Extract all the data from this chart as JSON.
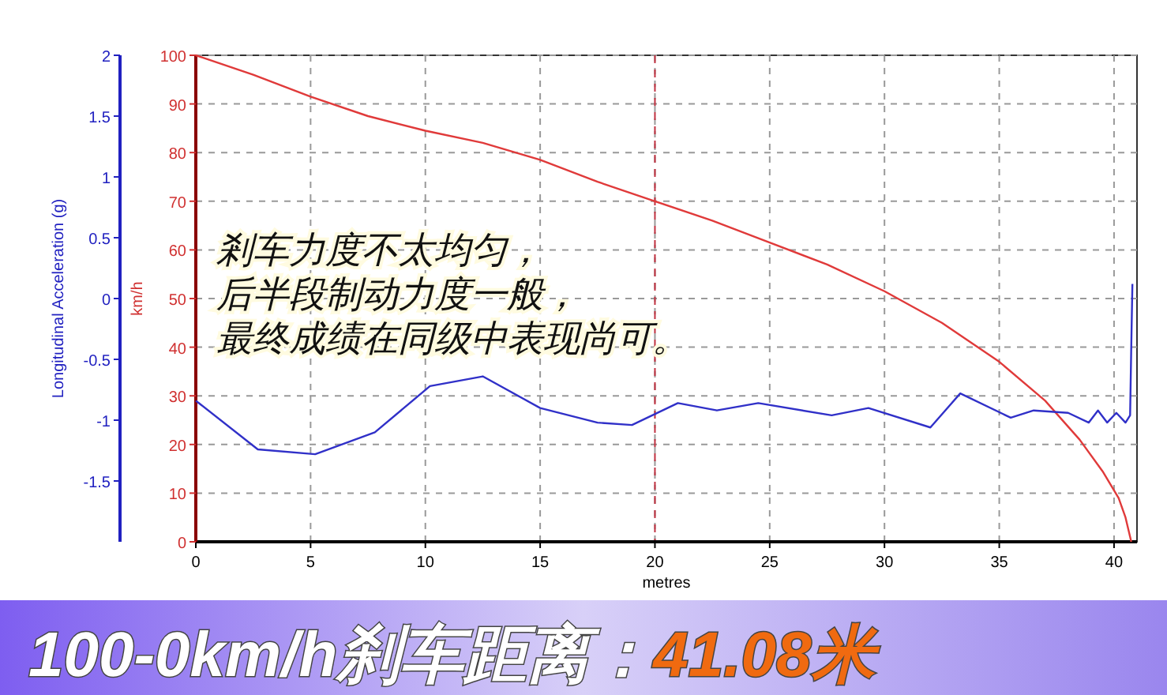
{
  "chart_data": {
    "type": "line",
    "title": "100-0km/h刹车距离：",
    "subtitle": "41.08米",
    "xlabel": "metres",
    "ylabel": "Longitudinal Acceleration (g)",
    "y2label": "km/h",
    "xlim": [
      0,
      41
    ],
    "xticks": [
      0,
      5,
      10,
      15,
      20,
      25,
      30,
      35,
      40
    ],
    "ylim": [
      -2,
      2
    ],
    "yticks": [
      2,
      1.5,
      1,
      0.5,
      0,
      -0.5,
      -1,
      -1.5
    ],
    "y2lim": [
      0,
      100
    ],
    "y2ticks": [
      0,
      10,
      20,
      30,
      40,
      50,
      60,
      70,
      80,
      90,
      100
    ],
    "grid": true,
    "line_style": "solid",
    "marker": "none",
    "ref_lines": [
      {
        "axis": "x",
        "value": 20,
        "color": "#c03040",
        "line_style": "dashed"
      }
    ],
    "annotations": [
      "剎车力度不太均匀，",
      "后半段制动力度一般，",
      "最终成绩在同级中表现尚可。"
    ],
    "series": [
      {
        "color": "#e03a3a",
        "axis": "y2",
        "x": [
          0,
          2.5,
          5,
          7.5,
          10,
          12.5,
          15,
          17.5,
          20,
          22.5,
          25,
          27.5,
          30,
          32.5,
          35,
          37,
          38.5,
          39.5,
          40.2,
          40.5,
          40.7,
          40.75
        ],
        "values": [
          100,
          96,
          91.5,
          87.5,
          84.5,
          82,
          78.5,
          74,
          70,
          66,
          61.5,
          57,
          51.5,
          45,
          37,
          29,
          21,
          14.5,
          9,
          5,
          1,
          0
        ]
      },
      {
        "color": "#3030c8",
        "axis": "y",
        "x": [
          0,
          2.7,
          5.2,
          7.8,
          10.2,
          12.5,
          15,
          17.5,
          19,
          21,
          22.7,
          24.5,
          27.7,
          29.3,
          32,
          33.3,
          35.5,
          36.5,
          38,
          38.9,
          39.3,
          39.7,
          40.1,
          40.5,
          40.7,
          40.75,
          40.8
        ],
        "values": [
          -0.84,
          -1.24,
          -1.28,
          -1.1,
          -0.72,
          -0.64,
          -0.9,
          -1.02,
          -1.04,
          -0.86,
          -0.92,
          -0.86,
          -0.96,
          -0.9,
          -1.06,
          -0.78,
          -0.98,
          -0.92,
          -0.94,
          -1.02,
          -0.92,
          -1.02,
          -0.94,
          -1.02,
          -0.96,
          -0.4,
          0.12
        ]
      }
    ]
  }
}
